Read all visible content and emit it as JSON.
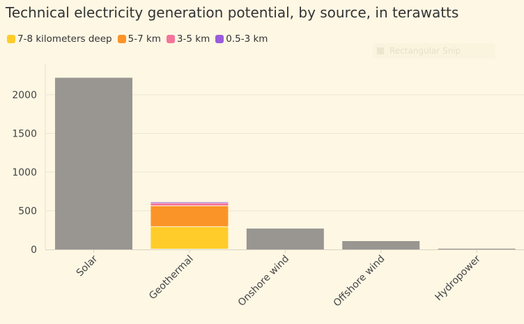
{
  "overlay": {
    "label": "Rectangular Snip"
  },
  "chart_data": {
    "type": "bar",
    "stacked": true,
    "title": "Technical electricity generation potential, by source, in terawatts",
    "xlabel": "",
    "ylabel": "",
    "categories": [
      "Solar",
      "Geothermal",
      "Onshore wind",
      "Offshore wind",
      "Hydropower"
    ],
    "total_series": {
      "color": "#999691",
      "values": [
        2220,
        null,
        270,
        108,
        10
      ]
    },
    "series": [
      {
        "name": "7-8 kilometers deep",
        "color": "#ffcc29",
        "values": [
          null,
          290,
          null,
          null,
          null
        ]
      },
      {
        "name": "5-7 km",
        "color": "#fb9428",
        "values": [
          null,
          270,
          null,
          null,
          null
        ]
      },
      {
        "name": "3-5 km",
        "color": "#f4749a",
        "values": [
          null,
          35,
          null,
          null,
          null
        ]
      },
      {
        "name": "0.5-3 km",
        "color": "#9a5cdc",
        "values": [
          null,
          15,
          null,
          null,
          null
        ]
      }
    ],
    "yticks": [
      "0",
      "500",
      "1000",
      "1500",
      "2000"
    ],
    "ylim": [
      0,
      2400
    ],
    "grid": true,
    "legend": "top-left"
  }
}
